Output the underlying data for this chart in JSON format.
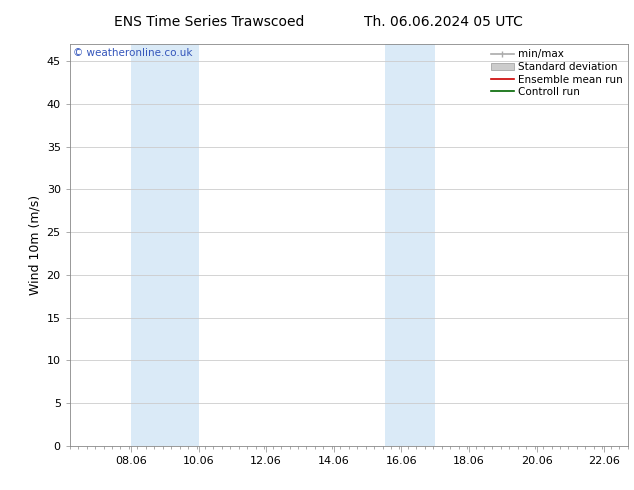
{
  "title_left": "ENS Time Series Trawscoed",
  "title_right": "Th. 06.06.2024 05 UTC",
  "watermark": "© weatheronline.co.uk",
  "ylabel": "Wind 10m (m/s)",
  "xlim": [
    6.25,
    22.75
  ],
  "ylim": [
    0,
    47
  ],
  "yticks": [
    0,
    5,
    10,
    15,
    20,
    25,
    30,
    35,
    40,
    45
  ],
  "xtick_labels": [
    "08.06",
    "10.06",
    "12.06",
    "14.06",
    "16.06",
    "18.06",
    "20.06",
    "22.06"
  ],
  "xtick_positions": [
    8.06,
    10.06,
    12.06,
    14.06,
    16.06,
    18.06,
    20.06,
    22.06
  ],
  "shaded_bands": [
    {
      "xmin": 8.06,
      "xmax": 10.06
    },
    {
      "xmin": 15.56,
      "xmax": 17.06
    }
  ],
  "shade_color": "#daeaf7",
  "background_color": "#ffffff",
  "grid_color": "#cccccc",
  "legend_entries": [
    {
      "label": "min/max",
      "color": "#aaaaaa",
      "lw": 1.2
    },
    {
      "label": "Standard deviation",
      "color": "#cccccc",
      "lw": 6
    },
    {
      "label": "Ensemble mean run",
      "color": "#cc0000",
      "lw": 1.2
    },
    {
      "label": "Controll run",
      "color": "#006600",
      "lw": 1.2
    }
  ],
  "watermark_color": "#3355bb",
  "title_fontsize": 10,
  "axis_label_fontsize": 9,
  "tick_fontsize": 8,
  "legend_fontsize": 7.5
}
